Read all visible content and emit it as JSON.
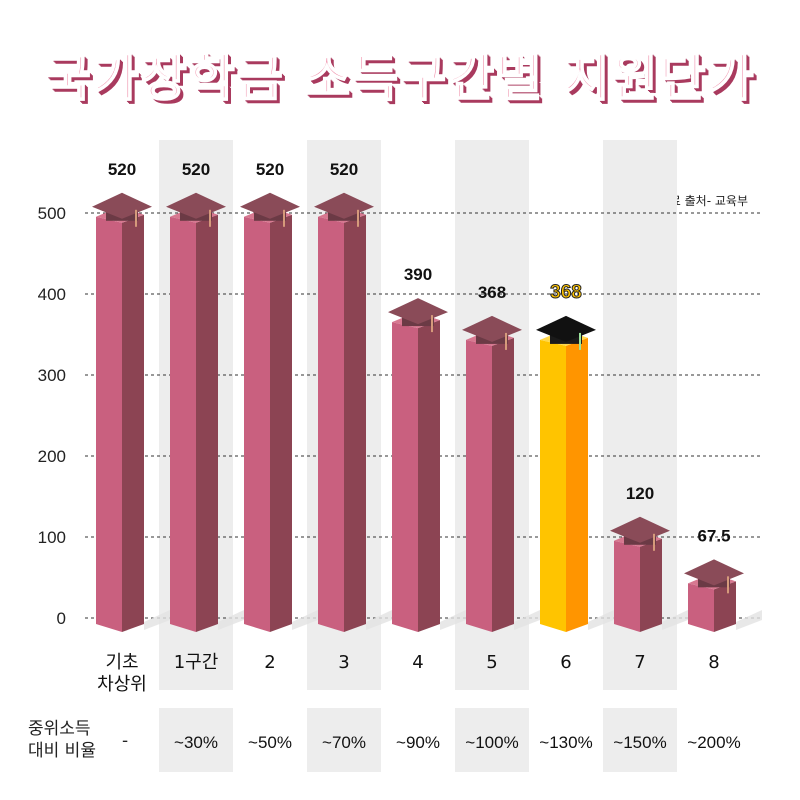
{
  "title": "국가장학금 소득구간별 지원단가",
  "source": "자료 출처- 교육부",
  "ratio_label": {
    "line1": "중위소득",
    "line2": "대비 비율",
    "dash": "-"
  },
  "colors": {
    "bar_front": "#c9607f",
    "bar_side": "#8c4453",
    "bar_top": "#d77890",
    "cap": "#6b3a45",
    "cap_top": "#8a4b58",
    "highlight_front": "#ffc400",
    "highlight_side": "#ff9500",
    "highlight_cap": "#1a1a1a",
    "shade_band": "#ededed",
    "title": "#ee87a4"
  },
  "chart_data": {
    "type": "bar",
    "title": "국가장학금 소득구간별 지원단가",
    "categories": [
      "기초\n차상위",
      "1구간",
      "2",
      "3",
      "4",
      "5",
      "6",
      "7",
      "8"
    ],
    "values": [
      520,
      520,
      520,
      520,
      390,
      368,
      368,
      120,
      67.5
    ],
    "value_labels": [
      "520",
      "520",
      "520",
      "520",
      "390",
      "368",
      "368",
      "120",
      "67.5"
    ],
    "ratios": [
      "",
      "~30%",
      "~50%",
      "~70%",
      "~90%",
      "~100%",
      "~130%",
      "~150%",
      "~200%"
    ],
    "highlight_index": 6,
    "shaded_indices": [
      1,
      3,
      5,
      7
    ],
    "yticks": [
      0,
      100,
      200,
      300,
      400,
      500
    ],
    "ylim": [
      0,
      520
    ],
    "grid": true
  }
}
